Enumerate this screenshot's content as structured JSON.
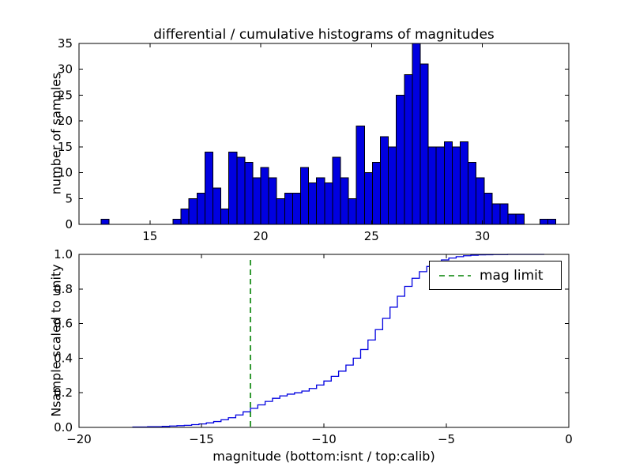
{
  "figure": {
    "background": "#ffffff",
    "frame_color": "#000000"
  },
  "chart_data": [
    {
      "type": "bar",
      "name": "differential-histogram",
      "title": "differential / cumulative histograms of magnitudes",
      "ylabel": "number of samples",
      "xlim": [
        11.8,
        33.9
      ],
      "ylim": [
        0,
        35
      ],
      "xticks": [
        15,
        20,
        25,
        30
      ],
      "xtick_labels": [
        "15",
        "20",
        "25",
        "30"
      ],
      "yticks": [
        0,
        5,
        10,
        15,
        20,
        25,
        30,
        35
      ],
      "ytick_labels": [
        "0",
        "5",
        "10",
        "15",
        "20",
        "25",
        "30",
        "35"
      ],
      "bin_start": 12.8,
      "bin_width": 0.36,
      "counts": [
        1,
        0,
        0,
        0,
        0,
        0,
        0,
        0,
        0,
        1,
        3,
        5,
        6,
        14,
        7,
        3,
        14,
        13,
        12,
        9,
        11,
        9,
        5,
        6,
        6,
        11,
        8,
        9,
        8,
        13,
        9,
        5,
        19,
        10,
        12,
        17,
        15,
        25,
        29,
        35,
        31,
        15,
        15,
        16,
        15,
        16,
        12,
        9,
        6,
        4,
        4,
        2,
        2,
        0,
        0,
        1,
        1
      ],
      "bar_color": "#0000e0",
      "bar_edge_color": "#000000",
      "grid": false
    },
    {
      "type": "line",
      "name": "cumulative-histogram",
      "ylabel": "Nsample scaled to unity",
      "xlabel": "magnitude (bottom:isnt / top:calib)",
      "xlim": [
        -20,
        0
      ],
      "ylim": [
        0.0,
        1.0
      ],
      "xticks": [
        -20,
        -15,
        -10,
        -5,
        0
      ],
      "xtick_labels": [
        "−20",
        "−15",
        "−10",
        "−5",
        "0"
      ],
      "yticks": [
        0.0,
        0.2,
        0.4,
        0.6,
        0.8,
        1.0
      ],
      "ytick_labels": [
        "0.0",
        "0.2",
        "0.4",
        "0.6",
        "0.8",
        "1.0"
      ],
      "step_start": -17.8,
      "step_width": 0.3,
      "cumulative_fraction": [
        0.002,
        0.002,
        0.004,
        0.004,
        0.006,
        0.008,
        0.01,
        0.012,
        0.016,
        0.02,
        0.026,
        0.034,
        0.044,
        0.056,
        0.072,
        0.09,
        0.11,
        0.13,
        0.15,
        0.168,
        0.182,
        0.192,
        0.2,
        0.21,
        0.225,
        0.245,
        0.268,
        0.295,
        0.325,
        0.36,
        0.4,
        0.45,
        0.505,
        0.565,
        0.63,
        0.695,
        0.758,
        0.815,
        0.862,
        0.9,
        0.93,
        0.952,
        0.968,
        0.979,
        0.987,
        0.992,
        0.995,
        0.997,
        0.998,
        0.999,
        0.999,
        1.0,
        1.0,
        1.0,
        1.0,
        1.0
      ],
      "line_color": "#0000e0",
      "mag_limit": {
        "x": -13,
        "color": "#008000",
        "dash": [
          7,
          5
        ],
        "label": "mag limit"
      },
      "legend": {
        "position": "upper right",
        "entries": [
          {
            "label": "mag limit",
            "color": "#008000",
            "style": "dashed"
          }
        ]
      },
      "grid": false
    }
  ]
}
